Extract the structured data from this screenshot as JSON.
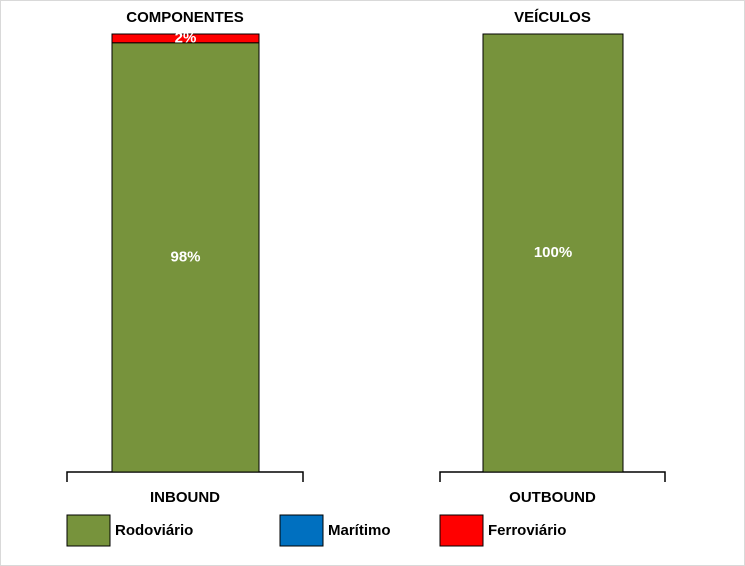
{
  "chart_data": {
    "type": "stacked-bar",
    "panel_titles": [
      "COMPONENTES",
      "VEÍCULOS"
    ],
    "categories": [
      "INBOUND",
      "OUTBOUND"
    ],
    "ylim": [
      0,
      100
    ],
    "series": [
      {
        "name": "Rodoviário",
        "color": "#77933c",
        "values": [
          98,
          100
        ],
        "value_labels": [
          "98%",
          "100%"
        ]
      },
      {
        "name": "Marítimo",
        "color": "#0070c0",
        "values": [
          0,
          0
        ]
      },
      {
        "name": "Ferroviário",
        "color": "#ff0000",
        "values": [
          2,
          0
        ],
        "value_labels": [
          "2%",
          null
        ]
      }
    ]
  }
}
